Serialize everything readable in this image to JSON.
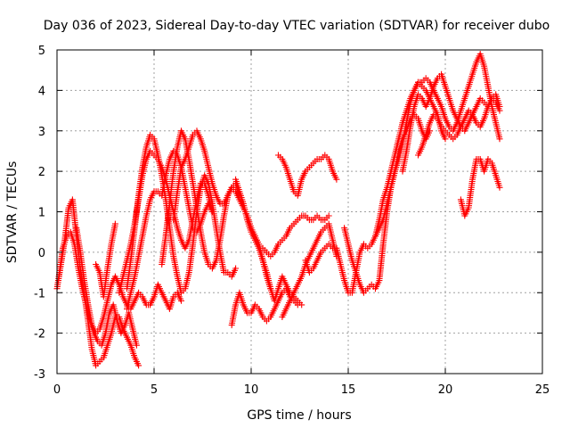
{
  "chart_data": {
    "type": "scatter",
    "title": "Day 036 of 2023, Sidereal Day-to-day VTEC variation (SDTVAR) for receiver dubo",
    "xlabel": "GPS time / hours",
    "ylabel": "SDTVAR / TECUs",
    "xlim": [
      0,
      25
    ],
    "ylim": [
      -3,
      5
    ],
    "xticks": [
      0,
      5,
      10,
      15,
      20,
      25
    ],
    "yticks": [
      -3,
      -2,
      -1,
      0,
      1,
      2,
      3,
      4,
      5
    ],
    "grid": true,
    "marker": "+",
    "color": "#ff0000",
    "series": [
      {
        "x": [
          0.0,
          0.2,
          0.4,
          0.6,
          0.8,
          1.0,
          1.2,
          1.4,
          1.6,
          1.8,
          2.0,
          2.2,
          2.4,
          2.6,
          2.8,
          3.0,
          3.2,
          3.4,
          3.6,
          3.8,
          4.0,
          4.2
        ],
        "y": [
          -0.9,
          -0.3,
          0.3,
          1.1,
          1.3,
          0.4,
          -0.4,
          -1.0,
          -1.7,
          -2.4,
          -2.8,
          -2.7,
          -2.6,
          -2.3,
          -2.0,
          -1.6,
          -1.6,
          -1.9,
          -2.1,
          -2.3,
          -2.6,
          -2.8
        ]
      },
      {
        "x": [
          0.1,
          0.3,
          0.5,
          0.7,
          0.9,
          1.1,
          1.3,
          1.5,
          1.7,
          1.9,
          2.1,
          2.3,
          2.5,
          2.7,
          2.9,
          3.1,
          3.3,
          3.5,
          3.7,
          3.9,
          4.1
        ],
        "y": [
          -0.6,
          0.1,
          0.4,
          0.5,
          0.2,
          -0.4,
          -0.9,
          -1.3,
          -1.7,
          -2.0,
          -2.2,
          -2.3,
          -2.0,
          -1.5,
          -1.3,
          -1.7,
          -2.0,
          -1.8,
          -1.5,
          -1.9,
          -2.3
        ]
      },
      {
        "x": [
          1.0,
          1.2,
          1.4,
          1.6,
          1.8,
          2.0,
          2.2,
          2.4,
          2.6,
          2.8,
          3.0,
          3.2,
          3.4,
          3.6,
          3.8,
          4.0,
          4.2,
          4.4,
          4.6,
          4.8,
          5.0,
          5.2,
          5.4,
          5.6,
          5.8,
          6.0,
          6.2,
          6.4
        ],
        "y": [
          0.6,
          0.0,
          -0.7,
          -1.3,
          -1.8,
          -2.0,
          -1.9,
          -1.6,
          -1.2,
          -0.8,
          -0.6,
          -0.8,
          -1.1,
          -1.3,
          -1.4,
          -1.2,
          -1.0,
          -1.1,
          -1.3,
          -1.3,
          -1.1,
          -0.8,
          -1.0,
          -1.2,
          -1.4,
          -1.1,
          -1.0,
          -1.2
        ]
      },
      {
        "x": [
          2.0,
          2.2,
          2.4,
          2.6,
          2.8,
          3.0
        ],
        "y": [
          -0.3,
          -0.5,
          -1.1,
          -0.4,
          0.2,
          0.7
        ]
      },
      {
        "x": [
          3.6,
          3.8,
          4.0,
          4.2,
          4.4,
          4.6,
          4.8,
          5.0,
          5.2,
          5.4,
          5.6,
          5.8,
          6.0,
          6.2,
          6.4,
          6.6,
          6.8,
          7.0,
          7.2,
          7.4,
          7.6,
          7.8,
          8.0,
          8.2,
          8.4,
          8.6,
          8.8,
          9.0,
          9.2
        ],
        "y": [
          -0.9,
          -0.2,
          0.6,
          1.4,
          2.1,
          2.6,
          2.9,
          2.8,
          2.4,
          1.9,
          1.3,
          0.6,
          -0.1,
          -0.6,
          -1.0,
          -0.9,
          -0.5,
          0.2,
          1.0,
          1.6,
          1.9,
          1.7,
          1.2,
          0.6,
          0.0,
          -0.5,
          -0.5,
          -0.6,
          -0.4
        ]
      },
      {
        "x": [
          3.2,
          3.4,
          3.6,
          3.8,
          4.0,
          4.2,
          4.4,
          4.6,
          4.8,
          5.0,
          5.2,
          5.4,
          5.6,
          5.8,
          6.0,
          6.2,
          6.4,
          6.6,
          6.8,
          7.0,
          7.2,
          7.4,
          7.6,
          7.8,
          8.0
        ],
        "y": [
          -1.0,
          -0.6,
          -0.2,
          0.2,
          0.7,
          1.3,
          1.9,
          2.3,
          2.5,
          2.4,
          2.3,
          2.1,
          1.8,
          1.4,
          1.0,
          0.6,
          0.3,
          0.1,
          0.3,
          0.8,
          1.3,
          1.7,
          1.7,
          1.4,
          1.0
        ]
      },
      {
        "x": [
          3.6,
          3.8,
          4.0,
          4.2,
          4.4,
          4.6,
          4.8,
          5.0,
          5.2,
          5.4,
          5.6,
          5.8,
          6.0,
          6.2,
          6.4,
          6.6,
          6.8,
          7.0,
          7.2,
          7.4,
          7.6,
          7.8,
          8.0
        ],
        "y": [
          -1.4,
          -1.0,
          -0.6,
          -0.1,
          0.4,
          0.9,
          1.3,
          1.5,
          1.5,
          1.4,
          1.9,
          2.3,
          2.5,
          2.4,
          2.1,
          1.6,
          1.1,
          0.6,
          0.5,
          0.7,
          1.0,
          1.2,
          1.0
        ]
      },
      {
        "x": [
          5.4,
          5.6,
          5.8,
          6.0,
          6.2,
          6.4,
          6.6,
          6.8,
          7.0,
          7.2,
          7.4,
          7.6,
          7.8,
          8.0,
          8.2,
          8.4,
          8.6,
          8.8,
          9.0,
          9.2,
          9.4
        ],
        "y": [
          -0.3,
          0.4,
          1.2,
          2.0,
          2.6,
          3.0,
          2.8,
          2.3,
          1.7,
          1.1,
          0.5,
          0.0,
          -0.3,
          -0.4,
          -0.2,
          0.3,
          0.9,
          1.4,
          1.6,
          1.7,
          1.4
        ]
      },
      {
        "x": [
          6.0,
          6.2,
          6.4,
          6.6,
          6.8,
          7.0,
          7.2,
          7.4,
          7.6,
          7.8,
          8.0,
          8.2,
          8.4,
          8.6,
          8.8,
          9.0,
          9.2,
          9.4,
          9.6,
          9.8,
          10.0,
          10.2,
          10.4,
          10.6,
          10.8,
          11.0
        ],
        "y": [
          0.8,
          1.5,
          2.1,
          2.3,
          2.6,
          2.9,
          3.0,
          2.8,
          2.5,
          2.1,
          1.7,
          1.4,
          1.2,
          1.2,
          1.4,
          1.6,
          1.5,
          1.3,
          1.1,
          0.9,
          0.6,
          0.4,
          0.2,
          -0.2,
          -0.6,
          -0.9
        ]
      },
      {
        "x": [
          9.2,
          9.4,
          9.6,
          9.8,
          10.0,
          10.2,
          10.4,
          10.6,
          10.8,
          11.0,
          11.2,
          11.4,
          11.6,
          11.8,
          12.0,
          12.2,
          12.4,
          12.6
        ],
        "y": [
          1.8,
          1.5,
          1.2,
          0.8,
          0.5,
          0.3,
          0.1,
          -0.2,
          -0.5,
          -0.9,
          -1.2,
          -0.9,
          -0.6,
          -0.8,
          -1.0,
          -1.1,
          -1.2,
          -1.3
        ]
      },
      {
        "x": [
          9.0,
          9.2,
          9.4,
          9.6,
          9.8,
          10.0,
          10.2,
          10.4,
          10.6,
          10.8,
          11.0,
          11.2,
          11.4,
          11.6,
          11.8,
          12.0,
          12.2,
          12.4
        ],
        "y": [
          -1.8,
          -1.3,
          -1.0,
          -1.3,
          -1.5,
          -1.5,
          -1.3,
          -1.4,
          -1.6,
          -1.7,
          -1.6,
          -1.4,
          -1.2,
          -1.0,
          -0.9,
          -1.1,
          -1.2,
          -1.3
        ]
      },
      {
        "x": [
          10.6,
          10.8,
          11.0,
          11.2,
          11.4,
          11.6,
          11.8,
          12.0,
          12.2,
          12.4,
          12.6,
          12.8,
          13.0,
          13.2,
          13.4,
          13.6,
          13.8,
          14.0
        ],
        "y": [
          0.1,
          0.0,
          -0.1,
          0.0,
          0.2,
          0.3,
          0.4,
          0.6,
          0.7,
          0.8,
          0.9,
          0.9,
          0.8,
          0.8,
          0.9,
          0.8,
          0.8,
          0.9
        ]
      },
      {
        "x": [
          11.6,
          11.8,
          12.0,
          12.2,
          12.4,
          12.6,
          12.8,
          13.0,
          13.2,
          13.4,
          13.6,
          13.8,
          14.0,
          14.2,
          14.4
        ],
        "y": [
          -1.6,
          -1.4,
          -1.2,
          -1.0,
          -0.8,
          -0.6,
          -0.3,
          -0.1,
          0.1,
          0.3,
          0.5,
          0.6,
          0.7,
          0.3,
          -0.1
        ]
      },
      {
        "x": [
          11.4,
          11.6,
          11.8,
          12.0,
          12.2,
          12.4,
          12.6,
          12.8,
          13.0,
          13.2,
          13.4,
          13.6,
          13.8,
          14.0,
          14.2,
          14.4
        ],
        "y": [
          2.4,
          2.3,
          2.1,
          1.8,
          1.5,
          1.4,
          1.8,
          2.0,
          2.1,
          2.2,
          2.3,
          2.3,
          2.4,
          2.3,
          2.0,
          1.8
        ]
      },
      {
        "x": [
          12.8,
          13.0,
          13.2,
          13.4,
          13.6,
          13.8,
          14.0,
          14.2
        ],
        "y": [
          -0.2,
          -0.5,
          -0.4,
          -0.2,
          0.0,
          0.1,
          0.2,
          0.1
        ]
      },
      {
        "x": [
          14.8,
          15.0,
          15.2,
          15.4,
          15.6,
          15.8,
          16.0,
          16.2,
          16.4,
          16.6,
          16.8,
          17.0,
          17.2,
          17.4,
          17.6,
          17.8,
          18.0,
          18.2,
          18.4,
          18.6,
          18.8,
          19.0,
          19.2,
          19.4,
          19.6,
          19.8,
          20.0
        ],
        "y": [
          0.6,
          0.2,
          -0.2,
          -0.5,
          -0.8,
          -1.0,
          -0.9,
          -0.8,
          -0.9,
          -0.7,
          0.2,
          1.0,
          1.6,
          2.0,
          2.3,
          2.7,
          3.2,
          3.7,
          4.0,
          4.2,
          4.1,
          4.0,
          3.8,
          3.6,
          3.4,
          3.0,
          2.8
        ]
      },
      {
        "x": [
          14.4,
          14.6,
          14.8,
          15.0,
          15.2,
          15.4,
          15.6,
          15.8,
          16.0,
          16.2,
          16.4,
          16.6,
          16.8,
          17.0,
          17.2,
          17.4,
          17.6,
          17.8,
          18.0,
          18.2,
          18.4,
          18.6,
          18.8,
          19.0,
          19.2
        ],
        "y": [
          0.1,
          -0.3,
          -0.7,
          -1.0,
          -1.0,
          -0.5,
          0.0,
          0.2,
          0.1,
          0.2,
          0.4,
          0.6,
          0.8,
          1.2,
          1.6,
          2.0,
          2.5,
          2.8,
          3.0,
          3.3,
          3.4,
          3.3,
          3.0,
          2.8,
          3.0
        ]
      },
      {
        "x": [
          16.4,
          16.6,
          16.8,
          17.0,
          17.2,
          17.4,
          17.6,
          17.8,
          18.0,
          18.2,
          18.4,
          18.6,
          18.8,
          19.0,
          19.2,
          19.4,
          19.6,
          19.8,
          20.0,
          20.2,
          20.4,
          20.6,
          20.8,
          21.0,
          21.2,
          21.4,
          21.6,
          21.8,
          22.0,
          22.2,
          22.4,
          22.6,
          22.8
        ],
        "y": [
          0.4,
          0.8,
          1.3,
          1.6,
          2.0,
          2.4,
          2.8,
          3.2,
          3.5,
          3.8,
          4.0,
          4.2,
          4.2,
          4.3,
          4.2,
          4.0,
          3.8,
          3.6,
          3.3,
          3.1,
          3.0,
          3.2,
          3.5,
          3.8,
          4.1,
          4.4,
          4.7,
          4.9,
          4.6,
          4.1,
          3.6,
          3.2,
          2.8
        ]
      },
      {
        "x": [
          17.8,
          18.0,
          18.2,
          18.4,
          18.6,
          18.8,
          19.0,
          19.2,
          19.4,
          19.6,
          19.8,
          20.0,
          20.2,
          20.4,
          20.6,
          20.8,
          21.0,
          21.2,
          21.4,
          21.6,
          21.8,
          22.0,
          22.2,
          22.4,
          22.6,
          22.8
        ],
        "y": [
          2.0,
          2.5,
          3.1,
          3.6,
          3.9,
          3.8,
          3.6,
          3.8,
          4.1,
          4.3,
          4.4,
          4.1,
          3.8,
          3.5,
          3.3,
          3.1,
          3.0,
          3.2,
          3.4,
          3.6,
          3.8,
          3.7,
          3.6,
          3.8,
          3.9,
          3.6
        ]
      },
      {
        "x": [
          18.6,
          18.8,
          19.0,
          19.2,
          19.4,
          19.6,
          19.8,
          20.0,
          20.2,
          20.4,
          20.6,
          20.8,
          21.0,
          21.2,
          21.4,
          21.6,
          21.8,
          22.0,
          22.2,
          22.4,
          22.6,
          22.8
        ],
        "y": [
          2.4,
          2.6,
          2.9,
          3.2,
          3.4,
          3.3,
          3.1,
          3.0,
          2.9,
          2.8,
          2.9,
          3.1,
          3.3,
          3.5,
          3.4,
          3.2,
          3.1,
          3.3,
          3.6,
          3.8,
          3.7,
          3.5
        ]
      },
      {
        "x": [
          20.8,
          21.0,
          21.2,
          21.4,
          21.6,
          21.8,
          22.0,
          22.2,
          22.4,
          22.6,
          22.8
        ],
        "y": [
          1.3,
          0.9,
          1.1,
          1.8,
          2.3,
          2.3,
          2.0,
          2.3,
          2.2,
          1.9,
          1.6
        ]
      }
    ]
  }
}
